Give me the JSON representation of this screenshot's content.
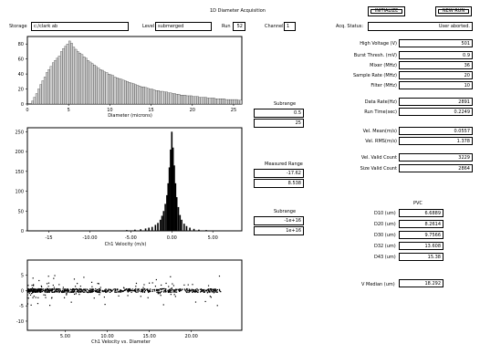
{
  "title": "1D Diameter Acquisition",
  "buttons": {
    "initialize": "INITIALIZE",
    "new_run": "NEW RUN"
  },
  "top_bar": {
    "storage_label": "Storage",
    "storage_value": "c:/clark ab",
    "level_label": "Level",
    "level_value": "submerged",
    "run_label": "Run",
    "run_value": "52",
    "channel_label": "Channel",
    "channel_value": "1",
    "acq_status_label": "Acq. Status:",
    "acq_status_value": "User aborted."
  },
  "right_params": [
    {
      "label": "High Voltage (V)",
      "value": "501"
    },
    {
      "label": "Burst Thresh. (mV)",
      "value": "0.9"
    },
    {
      "label": "Mixer (MHz)",
      "value": "36"
    },
    {
      "label": "Sample Rate (MHz)",
      "value": "20"
    },
    {
      "label": "Filter (MHz)",
      "value": "10"
    }
  ],
  "rates": [
    {
      "label": "Data Rate(Hz)",
      "value": "2891"
    },
    {
      "label": "Run Time(sec)",
      "value": "0.2249"
    }
  ],
  "vel_stats": [
    {
      "label": "Vel. Mean(m/s)",
      "value": "0.0557"
    },
    {
      "label": "Vel. RMS(m/s)",
      "value": "1.378"
    }
  ],
  "counts": [
    {
      "label": "Vel. Valid Count",
      "value": "3229"
    },
    {
      "label": "Size Valid Count",
      "value": "2864"
    }
  ],
  "pvc": {
    "heading": "PVC",
    "rows": [
      {
        "label": "D10 (um)",
        "value": "6.6889"
      },
      {
        "label": "D20 (um)",
        "value": "8.2614"
      },
      {
        "label": "D30 (um)",
        "value": "9.7566"
      },
      {
        "label": "D32 (um)",
        "value": "13.608"
      },
      {
        "label": "D43 (um)",
        "value": "15.38"
      }
    ],
    "v_median_label": "V Median (um)",
    "v_median_value": "18.292"
  },
  "middle": {
    "subrange1_label": "Subrange",
    "subrange1_min": "0.5",
    "subrange1_max": "25",
    "measured_label": "Measured Range",
    "measured_min": "-17.62",
    "measured_max": "8.538",
    "subrange2_label": "Subrange",
    "subrange2_min": "-1e+16",
    "subrange2_max": "1e+16"
  },
  "chart_data": [
    {
      "type": "bar",
      "xlabel": "Diameter (microns)",
      "xlim": [
        0,
        26
      ],
      "ylim": [
        0,
        90
      ],
      "x_ticks": [
        0,
        5,
        10,
        15,
        20,
        25
      ],
      "y_ticks": [
        0,
        20,
        40,
        60,
        80
      ],
      "bin_width": 0.25,
      "bin_start": 0.5,
      "values": [
        4,
        9,
        14,
        20,
        26,
        31,
        36,
        42,
        46,
        50,
        55,
        58,
        61,
        64,
        70,
        74,
        77,
        80,
        84,
        81,
        76,
        73,
        70,
        68,
        66,
        63,
        61,
        58,
        56,
        54,
        52,
        50,
        48,
        46,
        45,
        43,
        42,
        40,
        39,
        38,
        36,
        35,
        34,
        33,
        32,
        31,
        30,
        29,
        28,
        27,
        26,
        25,
        24,
        23,
        23,
        22,
        21,
        20,
        20,
        19,
        18,
        18,
        17,
        17,
        16,
        16,
        15,
        15,
        14,
        14,
        13,
        13,
        12,
        12,
        12,
        11,
        11,
        11,
        10,
        10,
        10,
        9,
        9,
        9,
        9,
        8,
        8,
        8,
        8,
        7,
        7,
        7,
        7,
        7,
        6,
        6,
        6,
        6,
        6,
        6,
        5,
        5,
        5,
        5,
        5,
        5,
        5,
        4,
        4,
        4,
        4,
        4,
        4,
        4,
        4,
        3,
        3,
        3,
        3,
        3,
        3,
        3,
        3,
        3,
        3,
        3,
        2,
        2,
        2,
        2,
        2,
        2,
        2,
        2,
        2,
        2,
        2,
        2,
        2,
        2,
        2,
        2,
        2,
        1,
        1,
        1,
        1,
        1,
        1,
        1,
        1,
        1,
        1,
        1,
        1,
        1,
        1,
        1,
        1,
        1,
        1,
        1,
        1,
        1,
        1,
        1,
        1,
        1,
        1,
        1,
        1,
        1,
        1,
        1,
        1,
        1,
        1,
        1,
        1,
        1,
        1,
        1,
        1,
        1,
        1,
        1,
        1,
        1,
        1,
        1,
        1,
        1,
        1,
        1,
        1,
        1,
        1,
        1,
        1,
        1,
        1,
        1,
        1,
        1,
        1,
        1,
        1,
        1,
        1,
        1,
        1,
        1,
        1,
        1,
        1,
        1,
        1,
        1,
        1,
        1,
        1,
        1,
        1,
        1,
        1,
        1,
        1,
        1,
        1,
        1,
        1,
        1,
        1,
        1,
        1,
        1,
        1,
        1,
        1,
        1,
        1,
        1,
        1,
        1,
        1,
        1,
        1,
        1,
        1,
        1,
        1,
        1,
        1,
        1,
        1,
        1,
        1,
        1,
        1,
        1,
        1,
        1,
        1,
        1,
        1,
        1,
        1,
        1,
        1,
        1,
        1,
        1,
        1,
        1,
        1,
        1
      ]
    },
    {
      "type": "bar",
      "xlabel": "Ch1 Velocity (m/s)",
      "xlim": [
        -17.62,
        8.538
      ],
      "ylim": [
        0,
        260
      ],
      "x_ticks": [
        -15,
        -10,
        -5,
        0,
        5
      ],
      "x_tick_labels": [
        "-15",
        "-10.00",
        "-5.00",
        "0.00",
        "5.00"
      ],
      "y_ticks": [
        0,
        50,
        100,
        150,
        200,
        250
      ],
      "centers": [
        -6.5,
        -5.5,
        -4.5,
        -3.8,
        -3.2,
        -2.8,
        -2.4,
        -2.0,
        -1.7,
        -1.4,
        -1.2,
        -1.0,
        -0.8,
        -0.6,
        -0.45,
        -0.3,
        -0.15,
        0.0,
        0.15,
        0.3,
        0.45,
        0.6,
        0.8,
        1.0,
        1.2,
        1.5,
        1.8,
        2.2,
        2.7,
        3.3,
        4.2,
        5.5
      ],
      "values": [
        1,
        2,
        3,
        4,
        6,
        8,
        10,
        15,
        20,
        28,
        38,
        50,
        68,
        90,
        120,
        160,
        205,
        250,
        210,
        165,
        120,
        85,
        60,
        40,
        28,
        18,
        12,
        8,
        5,
        3,
        2,
        1
      ]
    },
    {
      "type": "scatter",
      "xlabel": "Ch1 Velocity vs. Diameter",
      "xlim": [
        0.5,
        26
      ],
      "ylim": [
        -13,
        10
      ],
      "x_ticks": [
        5,
        10,
        15,
        20
      ],
      "x_tick_labels": [
        "5.00",
        "10.00",
        "15.00",
        "20.00"
      ],
      "y_ticks": [
        5,
        0,
        -5,
        -10
      ],
      "y_tick_labels": [
        "5",
        "0",
        "-5",
        "-10"
      ]
    }
  ]
}
